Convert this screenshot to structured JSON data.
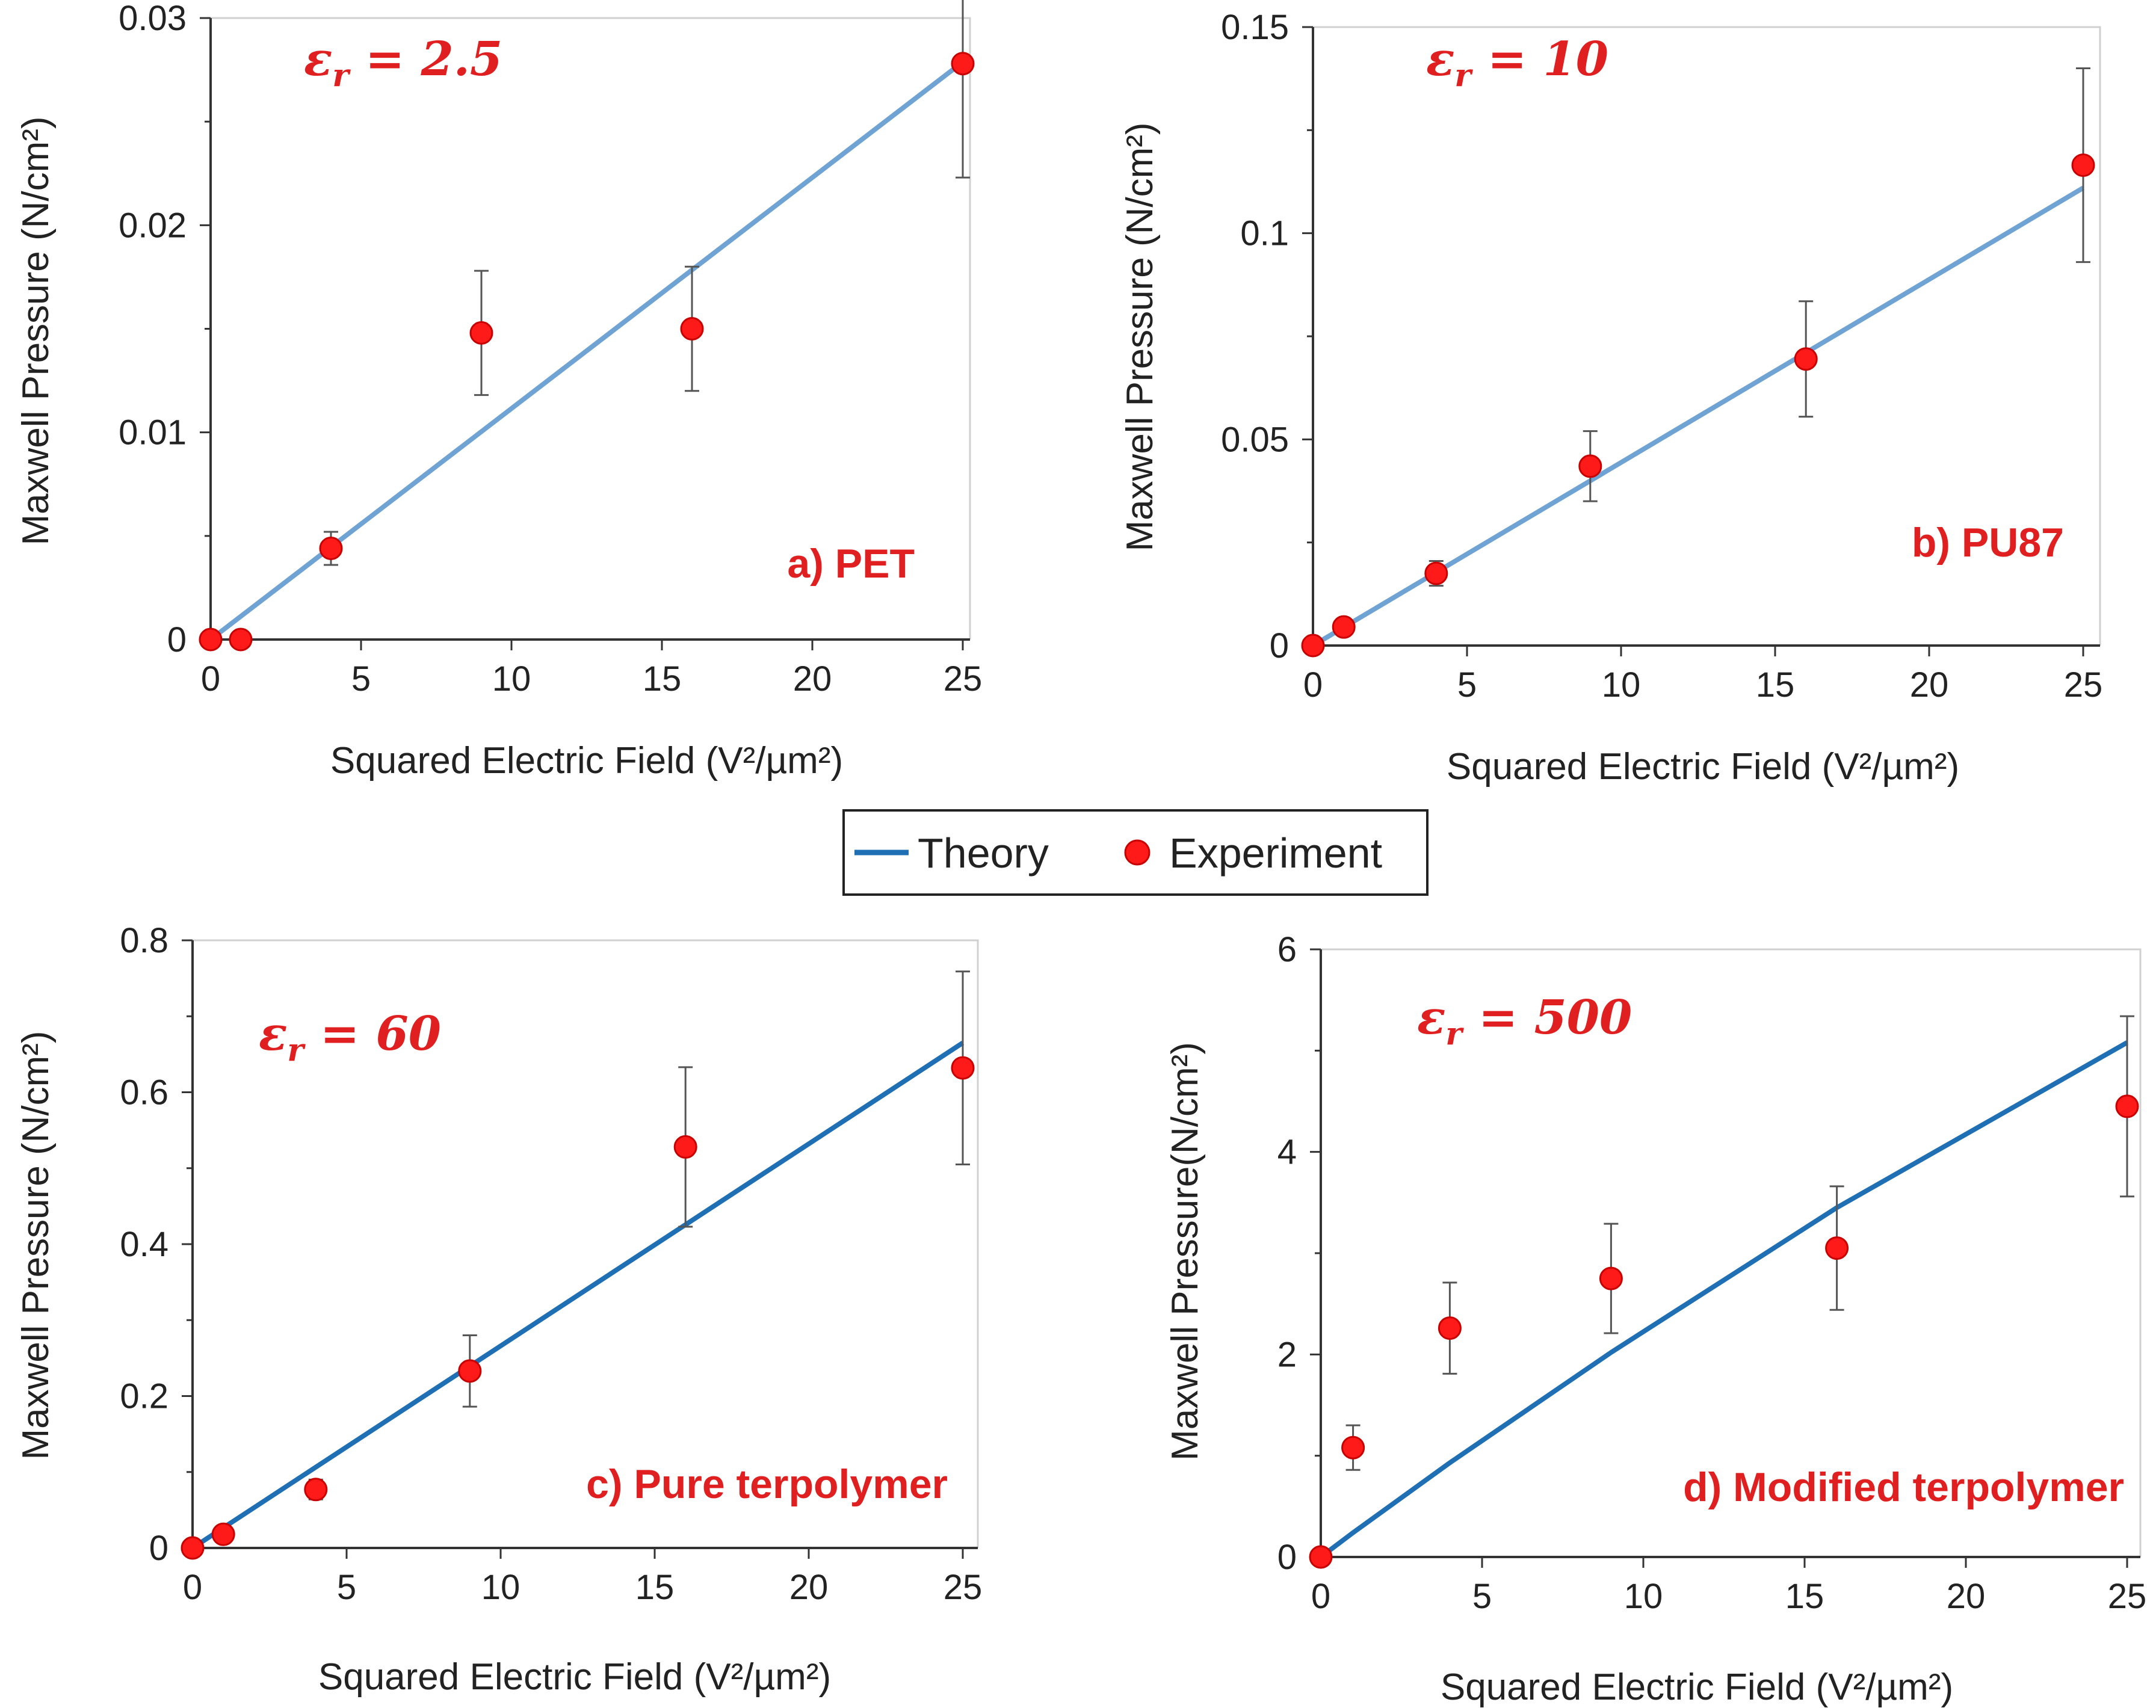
{
  "colors": {
    "theory_light": "#6fa3d3",
    "theory_dark": "#1f6fb4",
    "experiment": "#ff1a1a",
    "annotation": "#e02020",
    "axis": "#333333",
    "frame": "#d0d0d0",
    "errorbar": "#555555"
  },
  "legend": {
    "theory_label": "Theory",
    "experiment_label": "Experiment"
  },
  "chart_data": [
    {
      "id": "a",
      "type": "scatter",
      "title": "",
      "eps_symbol": "ε",
      "eps_sub": "r",
      "eps_rest": " = 2.5",
      "panel_label": "a) PET",
      "xlabel": "Squared Electric Field (V²/µm²)",
      "ylabel": "Maxwell Pressure (N/cm²)",
      "xlim": [
        0,
        25
      ],
      "ylim": [
        0,
        0.03
      ],
      "xticks": [
        0,
        5,
        10,
        15,
        20,
        25
      ],
      "xtick_labels": [
        "0",
        "5",
        "10",
        "15",
        "20",
        "25"
      ],
      "yticks": [
        0,
        0.01,
        0.02,
        0.03
      ],
      "ytick_labels": [
        "0",
        "0.01",
        "0.02",
        "0.03"
      ],
      "theory_color_key": "theory_light",
      "series": [
        {
          "name": "Theory",
          "x": [
            0,
            25.2
          ],
          "y": [
            0,
            0.0281
          ]
        },
        {
          "name": "Experiment",
          "x": [
            0,
            1,
            4,
            9,
            16,
            25
          ],
          "y": [
            0,
            0,
            0.0044,
            0.0148,
            0.015,
            0.0278
          ],
          "err": [
            0,
            0,
            0.0008,
            0.003,
            0.003,
            0.0055
          ]
        }
      ]
    },
    {
      "id": "b",
      "type": "scatter",
      "title": "",
      "eps_symbol": "ε",
      "eps_sub": "r",
      "eps_rest": " = 10",
      "panel_label": "b) PU87",
      "xlabel": "Squared Electric Field (V²/µm²)",
      "ylabel": "Maxwell Pressure (N/cm²)",
      "xlim": [
        0,
        25
      ],
      "ylim": [
        0,
        0.15
      ],
      "xticks": [
        0,
        5,
        10,
        15,
        20,
        25
      ],
      "xtick_labels": [
        "0",
        "5",
        "10",
        "15",
        "20",
        "25"
      ],
      "yticks": [
        0,
        0.05,
        0.1,
        0.15
      ],
      "ytick_labels": [
        "0",
        "0.05",
        "0.1",
        "0.15"
      ],
      "theory_color_key": "theory_light",
      "series": [
        {
          "name": "Theory",
          "x": [
            0,
            25
          ],
          "y": [
            0,
            0.111
          ]
        },
        {
          "name": "Experiment",
          "x": [
            0,
            1,
            4,
            9,
            16,
            25
          ],
          "y": [
            0,
            0.0045,
            0.0175,
            0.0435,
            0.0695,
            0.1165
          ],
          "err": [
            0,
            0,
            0.003,
            0.0085,
            0.014,
            0.0235
          ]
        }
      ]
    },
    {
      "id": "c",
      "type": "scatter",
      "title": "",
      "eps_symbol": "ε",
      "eps_sub": "r",
      "eps_rest": " = 60",
      "panel_label": "c) Pure terpolymer",
      "xlabel": "Squared Electric Field (V²/µm²)",
      "ylabel": "Maxwell Pressure (N/cm²)",
      "xlim": [
        0,
        25
      ],
      "ylim": [
        0,
        0.8
      ],
      "xticks": [
        0,
        5,
        10,
        15,
        20,
        25
      ],
      "xtick_labels": [
        "0",
        "5",
        "10",
        "15",
        "20",
        "25"
      ],
      "yticks": [
        0,
        0.2,
        0.4,
        0.6,
        0.8
      ],
      "ytick_labels": [
        "0",
        "0.2",
        "0.4",
        "0.6",
        "0.8"
      ],
      "theory_color_key": "theory_dark",
      "series": [
        {
          "name": "Theory",
          "x": [
            0,
            25
          ],
          "y": [
            0,
            0.665
          ]
        },
        {
          "name": "Experiment",
          "x": [
            0,
            1,
            4,
            9,
            16,
            25
          ],
          "y": [
            0,
            0.018,
            0.077,
            0.233,
            0.528,
            0.632
          ],
          "err": [
            0,
            0,
            0.013,
            0.047,
            0.105,
            0.127
          ]
        }
      ]
    },
    {
      "id": "d",
      "type": "scatter",
      "title": "",
      "eps_symbol": "ε",
      "eps_sub": "r",
      "eps_rest": " = 500",
      "panel_label": "d) Modified terpolymer",
      "xlabel": "Squared Electric Field (V²/µm²)",
      "ylabel": "Maxwell Pressure(N/cm²)",
      "xlim": [
        0,
        25
      ],
      "ylim": [
        0,
        6
      ],
      "xticks": [
        0,
        5,
        10,
        15,
        20,
        25
      ],
      "xtick_labels": [
        "0",
        "5",
        "10",
        "15",
        "20",
        "25"
      ],
      "yticks": [
        0,
        2,
        4,
        6
      ],
      "ytick_labels": [
        "0",
        "2",
        "4",
        "6"
      ],
      "theory_color_key": "theory_dark",
      "series": [
        {
          "name": "Theory",
          "x": [
            0,
            1,
            4,
            9,
            16,
            25
          ],
          "y": [
            0,
            0.24,
            0.93,
            2.02,
            3.45,
            5.08
          ]
        },
        {
          "name": "Experiment",
          "x": [
            0,
            1,
            4,
            9,
            16,
            25
          ],
          "y": [
            0,
            1.08,
            2.26,
            2.75,
            3.05,
            4.45
          ],
          "err": [
            0,
            0.22,
            0.45,
            0.54,
            0.61,
            0.89
          ]
        }
      ]
    }
  ]
}
